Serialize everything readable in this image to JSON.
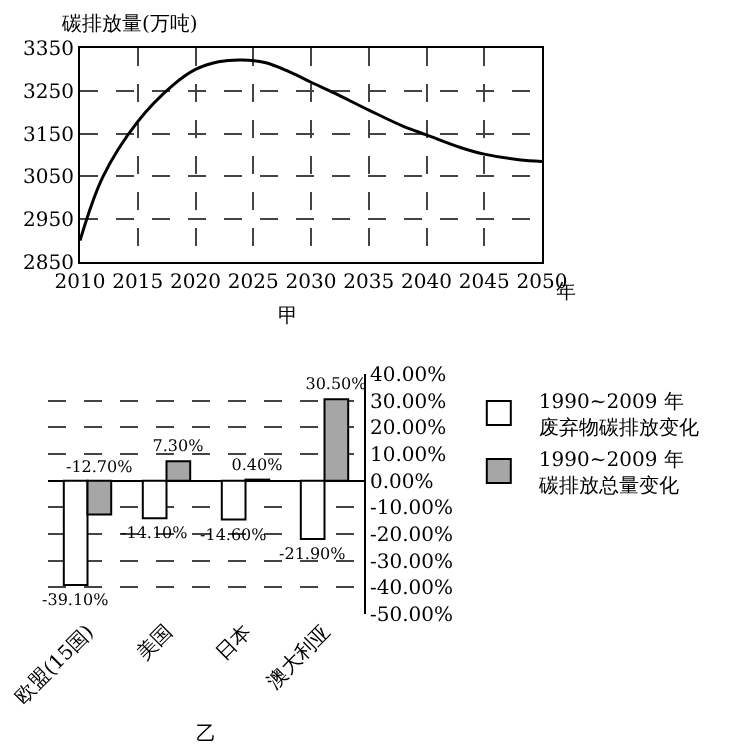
{
  "chart_data": [
    {
      "type": "line",
      "ylabel": "碳排放量(万吨)",
      "xlabel": "年",
      "annotations": [
        "甲"
      ],
      "x": [
        2010,
        2012,
        2015,
        2018,
        2020,
        2022,
        2024,
        2026,
        2028,
        2030,
        2032,
        2035,
        2038,
        2040,
        2043,
        2045,
        2048,
        2050
      ],
      "series": [
        {
          "color": "#000000",
          "values": [
            2900,
            3050,
            3178,
            3262,
            3300,
            3318,
            3322,
            3316,
            3296,
            3270,
            3245,
            3205,
            3167,
            3147,
            3117,
            3102,
            3089,
            3085
          ]
        }
      ],
      "xlim": [
        2010,
        2050
      ],
      "xticks": [
        2010,
        2015,
        2020,
        2025,
        2030,
        2035,
        2040,
        2045,
        2050
      ],
      "ylim": [
        2850,
        3350
      ],
      "yticks": [
        2850,
        2950,
        3050,
        3150,
        3250,
        3350
      ],
      "grid": true,
      "line_style": "solid",
      "marker": "none"
    },
    {
      "type": "bar",
      "annotations": [
        "乙"
      ],
      "categories": [
        "欧盟(15国)",
        "美国",
        "日本",
        "澳大利亚"
      ],
      "series": [
        {
          "name": "1990~2009 年废弃物碳排放变化",
          "color": "#ffffff",
          "values": [
            -39.1,
            -14.1,
            -14.6,
            -21.9
          ],
          "value_labels": [
            "-39.10%",
            "-14.10%",
            "-14.60%",
            "-21.90%"
          ]
        },
        {
          "name": "1990~2009 年碳排放总量变化",
          "color": "#a6a6a6",
          "values": [
            -12.7,
            7.3,
            0.4,
            30.5
          ],
          "value_labels": [
            "-12.70%",
            "7.30%",
            "0.40%",
            "30.50%"
          ]
        }
      ],
      "ylim": [
        -50,
        40
      ],
      "yticks": [
        {
          "value": 40,
          "label": "40.00%"
        },
        {
          "value": 30,
          "label": "30.00%"
        },
        {
          "value": 20,
          "label": "20.00%"
        },
        {
          "value": 10,
          "label": "10.00%"
        },
        {
          "value": 0,
          "label": "0.00%"
        },
        {
          "value": -10,
          "label": "-10.00%"
        },
        {
          "value": -20,
          "label": "-20.00%"
        },
        {
          "value": -30,
          "label": "-30.00%"
        },
        {
          "value": -40,
          "label": "-40.00%"
        },
        {
          "value": -50,
          "label": "-50.00%"
        }
      ],
      "grid": "y",
      "legend": "right"
    }
  ]
}
